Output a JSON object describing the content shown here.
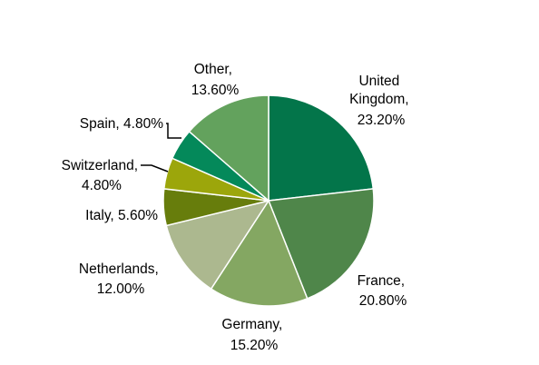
{
  "chart_data": {
    "type": "pie",
    "title": "",
    "slices": [
      {
        "label": "United Kingdom",
        "value": 23.2,
        "value_text": "23.20%",
        "color": "#03754a"
      },
      {
        "label": "France",
        "value": 20.8,
        "value_text": "20.80%",
        "color": "#4f864a"
      },
      {
        "label": "Germany",
        "value": 15.2,
        "value_text": "15.20%",
        "color": "#84a762"
      },
      {
        "label": "Netherlands",
        "value": 12.0,
        "value_text": "12.00%",
        "color": "#acb88f"
      },
      {
        "label": "Italy",
        "value": 5.6,
        "value_text": "5.60%",
        "color": "#677d0c"
      },
      {
        "label": "Switzerland",
        "value": 4.8,
        "value_text": "4.80%",
        "color": "#9ca60b"
      },
      {
        "label": "Spain",
        "value": 4.8,
        "value_text": "4.80%",
        "color": "#04895a"
      },
      {
        "label": "Other",
        "value": 13.6,
        "value_text": "13.60%",
        "color": "#63a25d"
      }
    ],
    "start": "12 o'clock",
    "direction": "clockwise",
    "slice_border_color": "#ffffff",
    "leader_line_color": "#000000"
  }
}
